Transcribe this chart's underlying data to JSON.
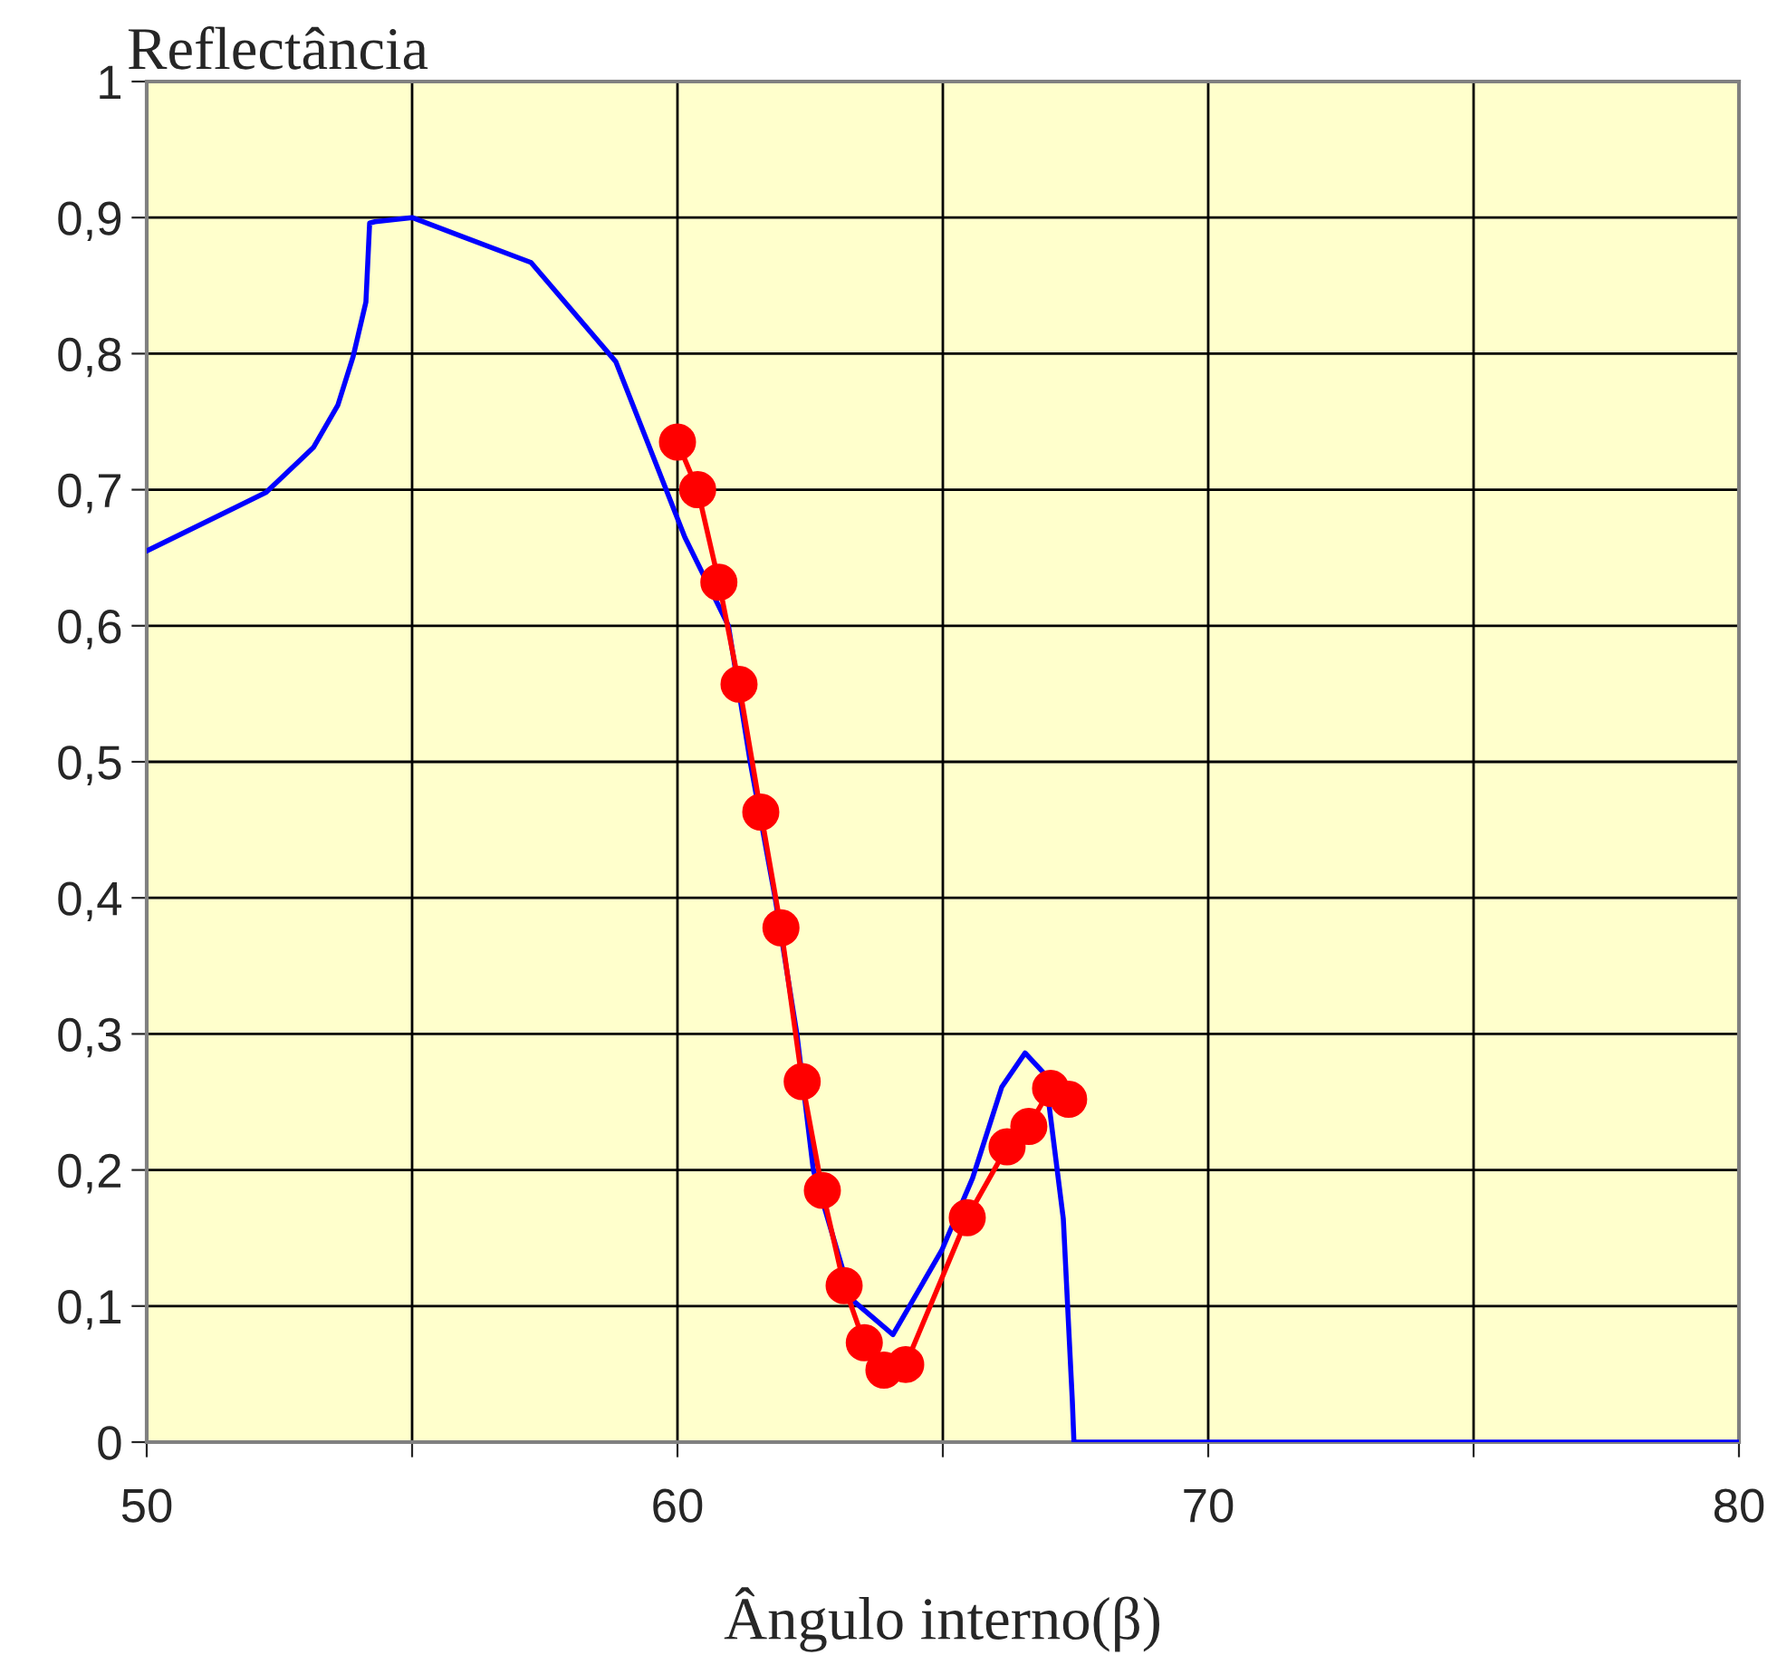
{
  "chart_data": {
    "type": "line",
    "xlabel": "Ângulo interno(β)",
    "ylabel": "Reflectância",
    "xlim": [
      50,
      80
    ],
    "ylim": [
      0,
      1
    ],
    "xticks": [
      50,
      {
        "value": 55,
        "label": null
      },
      60,
      {
        "value": 65,
        "label": null
      },
      70,
      {
        "value": 75,
        "label": null
      },
      80
    ],
    "yticks": [
      0,
      {
        "value": 0.1,
        "label": "0,1"
      },
      {
        "value": 0.2,
        "label": "0,2"
      },
      {
        "value": 0.3,
        "label": "0,3"
      },
      {
        "value": 0.4,
        "label": "0,4"
      },
      {
        "value": 0.5,
        "label": "0,5"
      },
      {
        "value": 0.6,
        "label": "0,6"
      },
      {
        "value": 0.7,
        "label": "0,7"
      },
      {
        "value": 0.8,
        "label": "0,8"
      },
      {
        "value": 0.9,
        "label": "0,9"
      },
      1
    ],
    "grid": true,
    "legend": false,
    "series": [
      {
        "color": "#0000ff",
        "marker": "none",
        "x": [
          50,
          52.25,
          53.14,
          53.6,
          53.89,
          54.13,
          54.2,
          54.3,
          55,
          57.24,
          58.84,
          60.14,
          60.96,
          61.37,
          61.84,
          62.25,
          62.56,
          63.28,
          64.06,
          64.98,
          65.56,
          66.11,
          66.55,
          66.93,
          67.27,
          67.44,
          67.47,
          80
        ],
        "values": [
          0.655,
          0.698,
          0.731,
          0.762,
          0.798,
          0.838,
          0.896,
          0.897,
          0.9,
          0.867,
          0.794,
          0.665,
          0.6,
          0.5,
          0.4,
          0.3,
          0.2,
          0.105,
          0.079,
          0.141,
          0.194,
          0.261,
          0.286,
          0.27,
          0.164,
          0.03,
          0,
          0
        ]
      },
      {
        "color": "#ff0000",
        "marker": "circle",
        "x": [
          60.0,
          60.38,
          60.78,
          61.16,
          61.57,
          61.95,
          62.35,
          62.73,
          63.14,
          63.52,
          63.89,
          64.3,
          65.46,
          66.21,
          66.62,
          67.03,
          67.37
        ],
        "values": [
          0.735,
          0.7,
          0.632,
          0.557,
          0.463,
          0.378,
          0.265,
          0.185,
          0.115,
          0.073,
          0.053,
          0.057,
          0.165,
          0.217,
          0.232,
          0.26,
          0.252
        ]
      }
    ]
  }
}
